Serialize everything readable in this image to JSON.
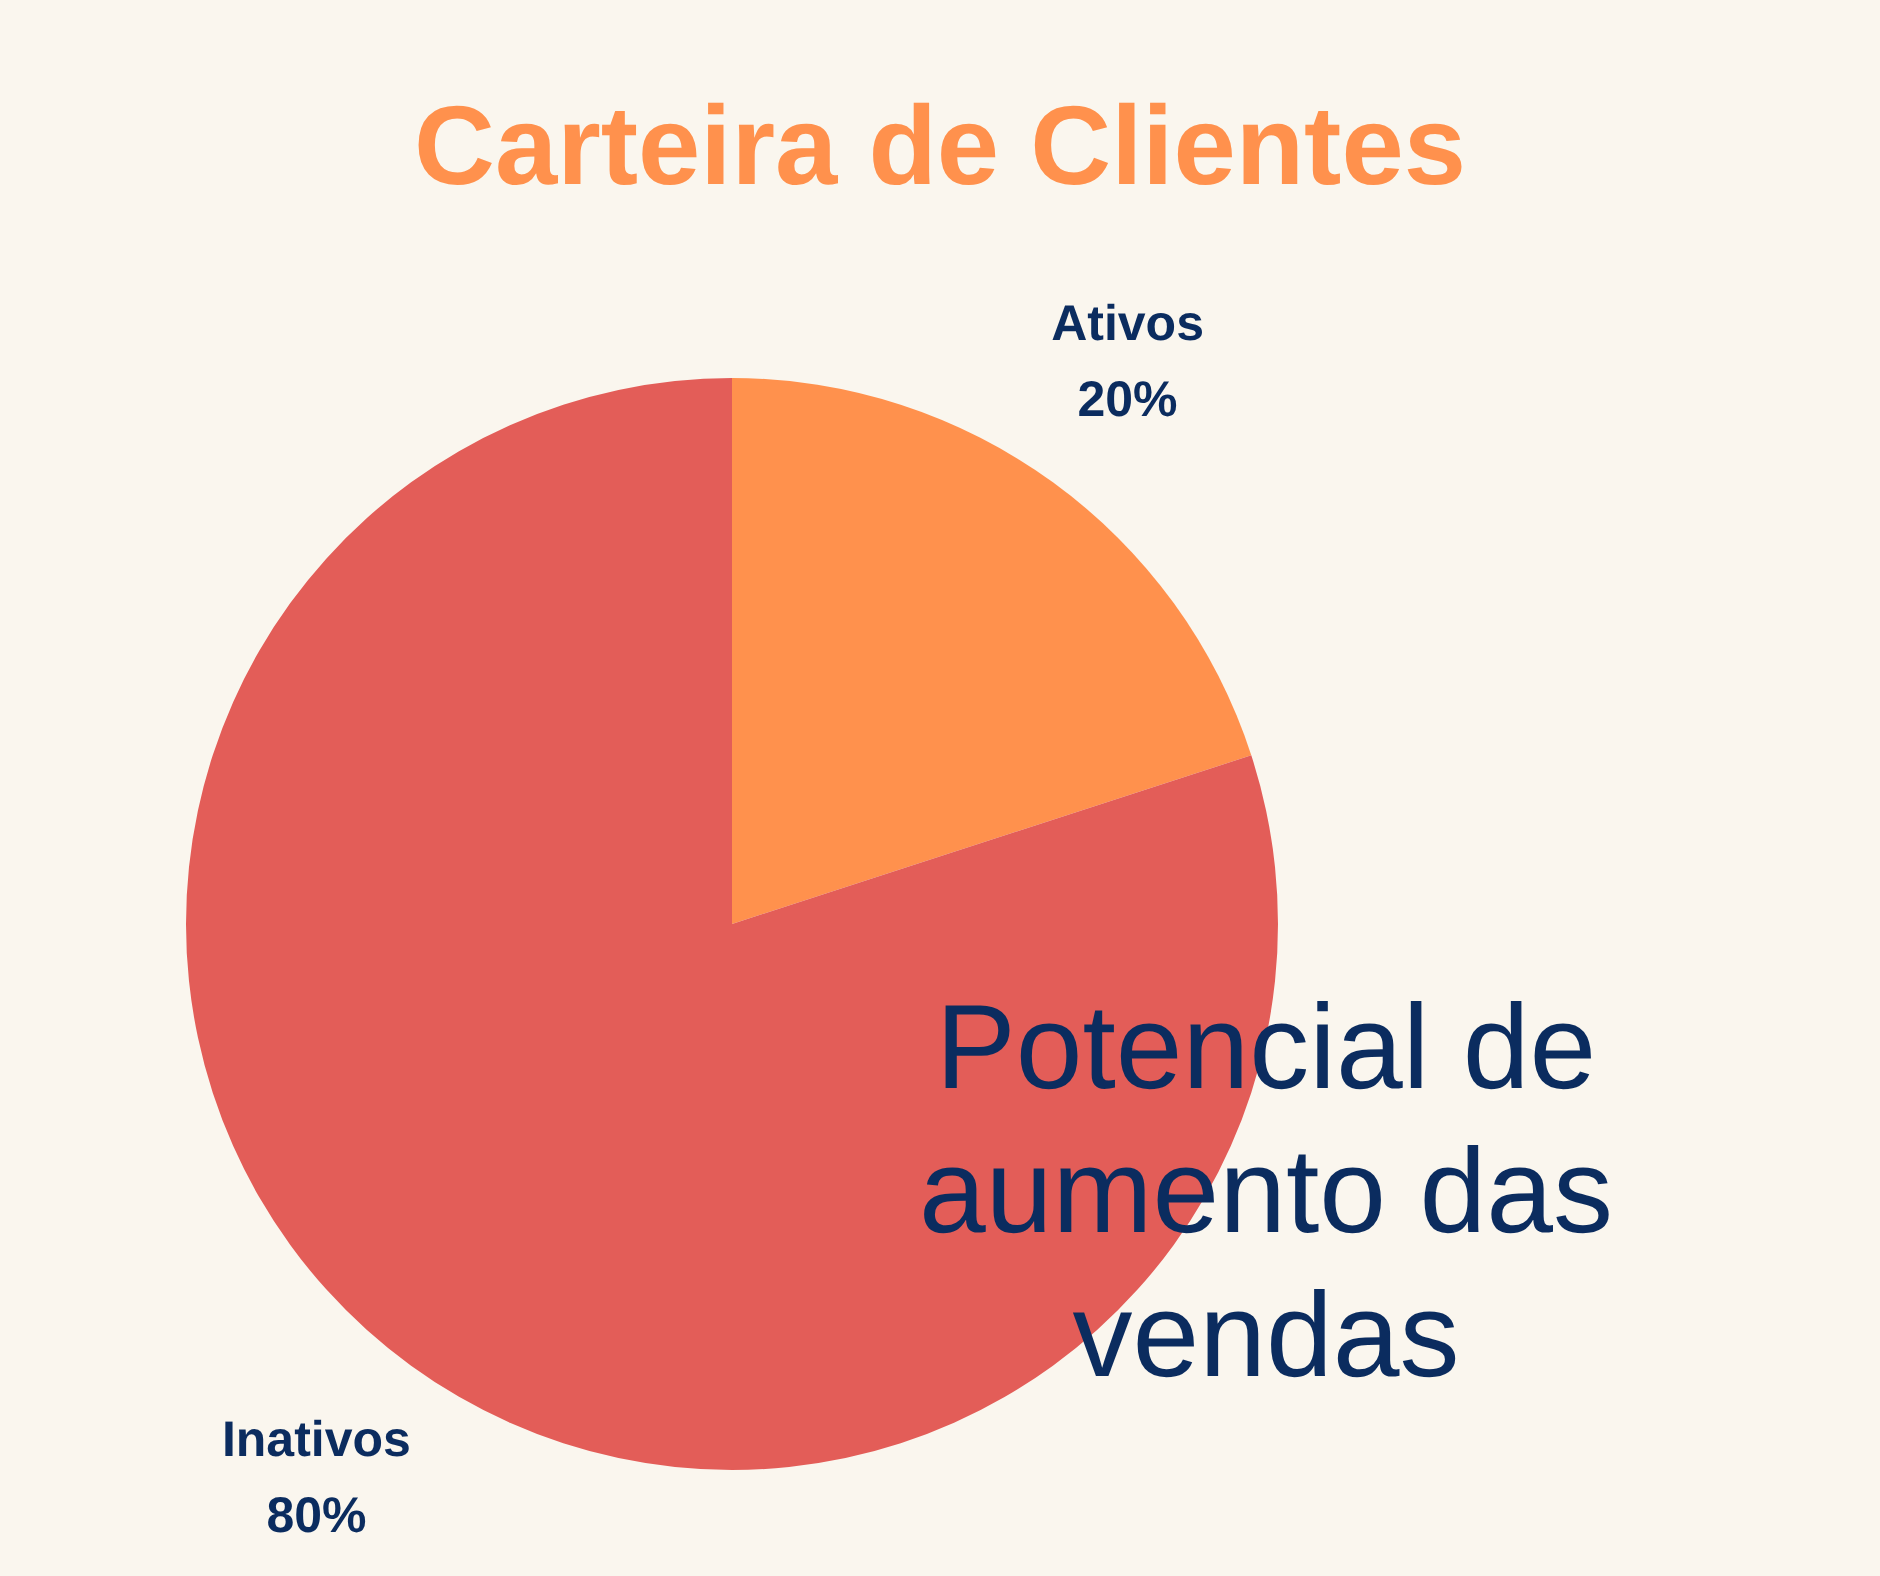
{
  "chart_data": {
    "type": "pie",
    "title": "Carteira de Clientes",
    "categories": [
      "Ativos",
      "Inativos"
    ],
    "values": [
      20,
      80
    ],
    "colors": [
      "#ff914d",
      "#e35d58"
    ],
    "value_labels": [
      "20%",
      "80%"
    ],
    "annotations": [
      "Potencial de aumento das vendas"
    ]
  }
}
